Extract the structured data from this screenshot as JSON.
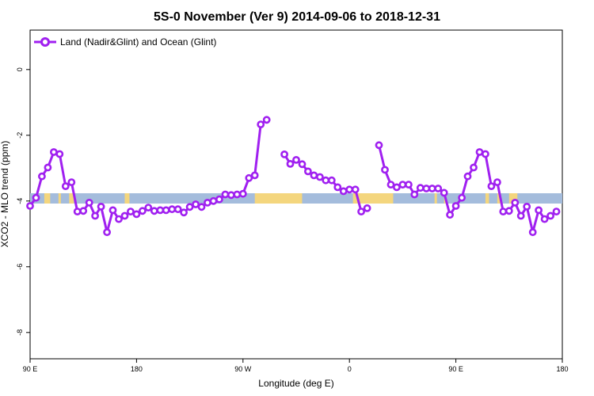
{
  "chart_data": {
    "type": "line",
    "title": "5S-0 November (Ver 9)   2014-09-06 to 2018-12-31",
    "xlabel": "Longitude (deg E)",
    "ylabel": "XCO2 - MLO trend (ppm)",
    "ylim": [
      -8.8,
      1.2
    ],
    "y_ticks": [
      0,
      -2,
      -4,
      -6,
      -8
    ],
    "x_ticks": [
      {
        "label": "90 E",
        "pos": 0
      },
      {
        "label": "180",
        "pos": 90
      },
      {
        "label": "90 W",
        "pos": 180
      },
      {
        "label": "0",
        "pos": 270
      },
      {
        "label": "90 E",
        "pos": 360
      },
      {
        "label": "180",
        "pos": 450
      }
    ],
    "xlim": [
      0,
      450
    ],
    "grid": false,
    "legend_position": "top-left",
    "series_colors": {
      "line": "#a020f0",
      "ocean_band": "#a4bcdc",
      "land_band": "#f4d67e"
    },
    "series": [
      {
        "name": "Land (Nadir&Glint) and Ocean (Glint)",
        "segments": [
          [
            [
              0,
              -4.15
            ],
            [
              5,
              -3.9
            ],
            [
              10,
              -3.25
            ],
            [
              15,
              -2.98
            ],
            [
              20,
              -2.51
            ],
            [
              25,
              -2.57
            ],
            [
              30,
              -3.55
            ],
            [
              35,
              -3.43
            ],
            [
              40,
              -4.32
            ],
            [
              45,
              -4.3
            ],
            [
              50,
              -4.05
            ],
            [
              55,
              -4.45
            ],
            [
              60,
              -4.17
            ],
            [
              65,
              -4.95
            ],
            [
              70,
              -4.28
            ],
            [
              75,
              -4.55
            ],
            [
              80,
              -4.45
            ],
            [
              85,
              -4.32
            ],
            [
              90,
              -4.4
            ],
            [
              95,
              -4.3
            ],
            [
              100,
              -4.2
            ],
            [
              105,
              -4.3
            ],
            [
              110,
              -4.28
            ],
            [
              115,
              -4.28
            ],
            [
              120,
              -4.25
            ],
            [
              125,
              -4.25
            ],
            [
              130,
              -4.35
            ],
            [
              135,
              -4.18
            ],
            [
              140,
              -4.1
            ],
            [
              145,
              -4.18
            ],
            [
              150,
              -4.05
            ],
            [
              155,
              -4.0
            ],
            [
              160,
              -3.95
            ],
            [
              165,
              -3.8
            ],
            [
              170,
              -3.82
            ],
            [
              175,
              -3.8
            ],
            [
              180,
              -3.78
            ],
            [
              185,
              -3.3
            ],
            [
              190,
              -3.22
            ],
            [
              195,
              -1.67
            ],
            [
              200,
              -1.53
            ]
          ],
          [
            [
              215,
              -2.58
            ],
            [
              220,
              -2.87
            ],
            [
              225,
              -2.75
            ],
            [
              230,
              -2.88
            ],
            [
              235,
              -3.1
            ],
            [
              240,
              -3.22
            ],
            [
              245,
              -3.27
            ],
            [
              250,
              -3.37
            ],
            [
              255,
              -3.37
            ],
            [
              260,
              -3.58
            ],
            [
              265,
              -3.7
            ],
            [
              270,
              -3.65
            ],
            [
              275,
              -3.65
            ],
            [
              280,
              -4.32
            ],
            [
              285,
              -4.22
            ]
          ],
          [
            [
              295,
              -2.3
            ],
            [
              300,
              -3.05
            ],
            [
              305,
              -3.5
            ],
            [
              310,
              -3.58
            ],
            [
              315,
              -3.5
            ],
            [
              320,
              -3.5
            ],
            [
              325,
              -3.8
            ],
            [
              330,
              -3.6
            ],
            [
              335,
              -3.62
            ],
            [
              340,
              -3.62
            ],
            [
              345,
              -3.62
            ],
            [
              350,
              -3.75
            ],
            [
              355,
              -4.42
            ],
            [
              360,
              -4.15
            ],
            [
              365,
              -3.9
            ],
            [
              370,
              -3.25
            ],
            [
              375,
              -2.98
            ],
            [
              380,
              -2.51
            ],
            [
              385,
              -2.57
            ],
            [
              390,
              -3.55
            ],
            [
              395,
              -3.43
            ],
            [
              400,
              -4.32
            ],
            [
              405,
              -4.3
            ],
            [
              410,
              -4.05
            ],
            [
              415,
              -4.45
            ],
            [
              420,
              -4.17
            ],
            [
              425,
              -4.95
            ],
            [
              430,
              -4.28
            ],
            [
              435,
              -4.55
            ],
            [
              440,
              -4.45
            ],
            [
              445,
              -4.32
            ]
          ]
        ]
      }
    ],
    "land_spans": [
      [
        12,
        17
      ],
      [
        24,
        26
      ],
      [
        33,
        37
      ],
      [
        80,
        84
      ],
      [
        190,
        230
      ],
      [
        273,
        307
      ],
      [
        342,
        344
      ],
      [
        350,
        352
      ],
      [
        385,
        388
      ],
      [
        395,
        398
      ],
      [
        405,
        412
      ]
    ]
  }
}
